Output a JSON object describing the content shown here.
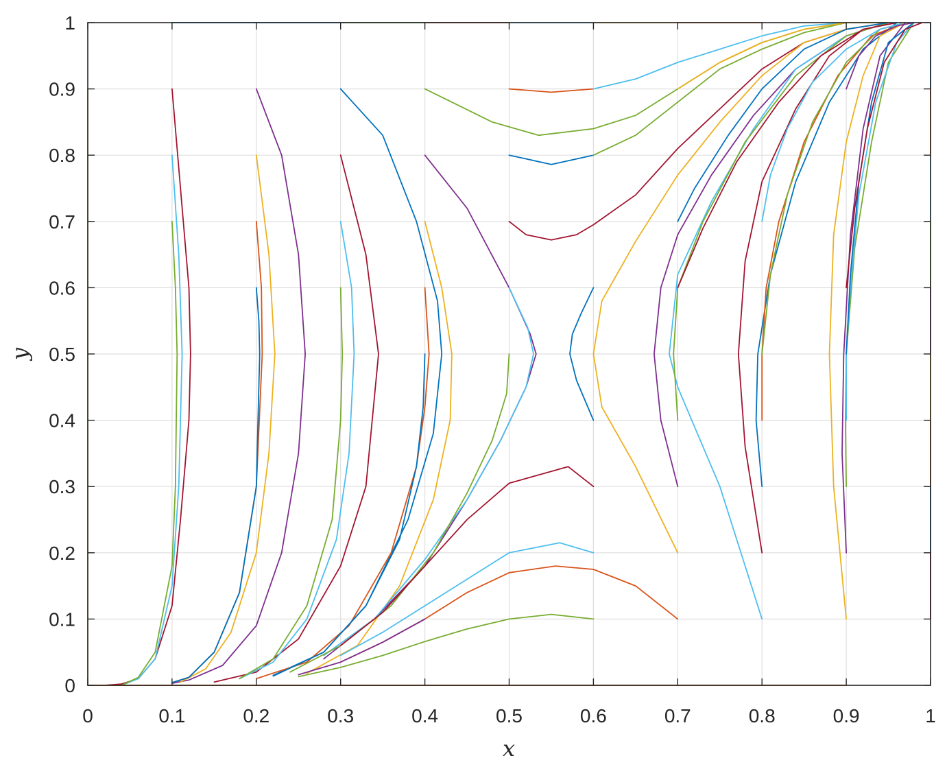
{
  "chart_data": {
    "type": "line",
    "title": "",
    "xlabel": "x",
    "ylabel": "y",
    "xlim": [
      0,
      1
    ],
    "ylim": [
      0,
      1
    ],
    "grid": true,
    "legend": "none",
    "xticks": [
      "0",
      "0.1",
      "0.2",
      "0.3",
      "0.4",
      "0.5",
      "0.6",
      "0.7",
      "0.8",
      "0.9",
      "1"
    ],
    "yticks": [
      "0",
      "0.1",
      "0.2",
      "0.3",
      "0.4",
      "0.5",
      "0.6",
      "0.7",
      "0.8",
      "0.9",
      "1"
    ],
    "colors": [
      "#0072BD",
      "#D95319",
      "#EDB120",
      "#7E2F8E",
      "#77AC30",
      "#4DBEEE",
      "#A2142F"
    ],
    "series": [
      {
        "color": "#A2142F",
        "x": [
          0.1,
          0.11,
          0.12,
          0.122,
          0.12,
          0.11,
          0.1,
          0.08,
          0.06,
          0.04,
          0.02
        ],
        "y": [
          0.9,
          0.75,
          0.6,
          0.5,
          0.4,
          0.25,
          0.12,
          0.04,
          0.01,
          0.002,
          0
        ]
      },
      {
        "color": "#4DBEEE",
        "x": [
          0.1,
          0.108,
          0.112,
          0.108,
          0.1,
          0.08,
          0.06,
          0.04
        ],
        "y": [
          0.8,
          0.65,
          0.5,
          0.3,
          0.15,
          0.04,
          0.01,
          0
        ]
      },
      {
        "color": "#77AC30",
        "x": [
          0.1,
          0.104,
          0.106,
          0.104,
          0.1,
          0.08,
          0.06,
          0.04
        ],
        "y": [
          0.7,
          0.6,
          0.5,
          0.3,
          0.18,
          0.05,
          0.012,
          0
        ]
      },
      {
        "color": "#7E2F8E",
        "x": [
          0.2,
          0.23,
          0.25,
          0.258,
          0.25,
          0.23,
          0.2,
          0.16,
          0.12,
          0.1
        ],
        "y": [
          0.9,
          0.8,
          0.65,
          0.5,
          0.35,
          0.2,
          0.09,
          0.03,
          0.008,
          0.003
        ]
      },
      {
        "color": "#EDB120",
        "x": [
          0.2,
          0.215,
          0.222,
          0.215,
          0.2,
          0.17,
          0.14,
          0.11
        ],
        "y": [
          0.8,
          0.65,
          0.5,
          0.35,
          0.2,
          0.08,
          0.025,
          0.005
        ]
      },
      {
        "color": "#D95319",
        "x": [
          0.2,
          0.206,
          0.207,
          0.2,
          0.18,
          0.15,
          0.12,
          0.1
        ],
        "y": [
          0.7,
          0.6,
          0.5,
          0.3,
          0.14,
          0.05,
          0.012,
          0.004
        ]
      },
      {
        "color": "#0072BD",
        "x": [
          0.2,
          0.203,
          0.204,
          0.2,
          0.18,
          0.15,
          0.12,
          0.1
        ],
        "y": [
          0.6,
          0.55,
          0.5,
          0.3,
          0.14,
          0.05,
          0.012,
          0.004
        ]
      },
      {
        "color": "#A2142F",
        "x": [
          0.3,
          0.33,
          0.345,
          0.33,
          0.3,
          0.25,
          0.2,
          0.15
        ],
        "y": [
          0.8,
          0.65,
          0.5,
          0.3,
          0.18,
          0.07,
          0.02,
          0.005
        ]
      },
      {
        "color": "#4DBEEE",
        "x": [
          0.3,
          0.313,
          0.316,
          0.31,
          0.295,
          0.26,
          0.22,
          0.18
        ],
        "y": [
          0.7,
          0.6,
          0.5,
          0.35,
          0.22,
          0.1,
          0.035,
          0.01
        ]
      },
      {
        "color": "#77AC30",
        "x": [
          0.3,
          0.302,
          0.3,
          0.29,
          0.26,
          0.22,
          0.18
        ],
        "y": [
          0.6,
          0.5,
          0.4,
          0.25,
          0.12,
          0.04,
          0.01
        ]
      },
      {
        "color": "#0072BD",
        "x": [
          0.3,
          0.35,
          0.39,
          0.415,
          0.42,
          0.41,
          0.38,
          0.33,
          0.28,
          0.22
        ],
        "y": [
          0.9,
          0.83,
          0.7,
          0.58,
          0.5,
          0.38,
          0.25,
          0.12,
          0.05,
          0.015
        ]
      },
      {
        "color": "#EDB120",
        "x": [
          0.4,
          0.42,
          0.432,
          0.43,
          0.41,
          0.37,
          0.32,
          0.26
        ],
        "y": [
          0.7,
          0.6,
          0.5,
          0.4,
          0.28,
          0.15,
          0.06,
          0.018
        ]
      },
      {
        "color": "#D95319",
        "x": [
          0.4,
          0.405,
          0.4,
          0.39,
          0.36,
          0.31,
          0.26,
          0.2
        ],
        "y": [
          0.6,
          0.5,
          0.42,
          0.33,
          0.2,
          0.09,
          0.035,
          0.01
        ]
      },
      {
        "color": "#0072BD",
        "x": [
          0.4,
          0.398,
          0.39,
          0.37,
          0.33,
          0.28,
          0.22
        ],
        "y": [
          0.5,
          0.42,
          0.33,
          0.22,
          0.12,
          0.05,
          0.014
        ]
      },
      {
        "color": "#7E2F8E",
        "x": [
          0.4,
          0.45,
          0.5,
          0.525,
          0.532,
          0.52,
          0.49,
          0.45,
          0.4,
          0.34,
          0.28
        ],
        "y": [
          0.8,
          0.72,
          0.6,
          0.53,
          0.5,
          0.45,
          0.37,
          0.28,
          0.18,
          0.1,
          0.04
        ]
      },
      {
        "color": "#4DBEEE",
        "x": [
          0.5,
          0.522,
          0.529,
          0.52,
          0.49,
          0.45,
          0.4,
          0.34,
          0.28
        ],
        "y": [
          0.6,
          0.54,
          0.5,
          0.45,
          0.37,
          0.28,
          0.19,
          0.1,
          0.045
        ]
      },
      {
        "color": "#77AC30",
        "x": [
          0.5,
          0.497,
          0.48,
          0.45,
          0.41,
          0.36,
          0.3,
          0.24
        ],
        "y": [
          0.5,
          0.44,
          0.37,
          0.29,
          0.2,
          0.12,
          0.06,
          0.02
        ]
      },
      {
        "color": "#A2142F",
        "x": [
          0.6,
          0.57,
          0.5,
          0.45,
          0.4,
          0.35,
          0.3
        ],
        "y": [
          0.3,
          0.33,
          0.305,
          0.25,
          0.18,
          0.11,
          0.06
        ]
      },
      {
        "color": "#4DBEEE",
        "x": [
          0.6,
          0.56,
          0.5,
          0.45,
          0.4,
          0.35,
          0.3
        ],
        "y": [
          0.2,
          0.215,
          0.2,
          0.16,
          0.12,
          0.08,
          0.045
        ]
      },
      {
        "color": "#D95319",
        "x": [
          0.7,
          0.65,
          0.6,
          0.555,
          0.5,
          0.45,
          0.4,
          0.35,
          0.3
        ],
        "y": [
          0.1,
          0.15,
          0.175,
          0.18,
          0.17,
          0.14,
          0.1,
          0.065,
          0.035
        ]
      },
      {
        "color": "#77AC30",
        "x": [
          0.6,
          0.55,
          0.5,
          0.45,
          0.4,
          0.35,
          0.3,
          0.25
        ],
        "y": [
          0.1,
          0.107,
          0.1,
          0.085,
          0.066,
          0.045,
          0.027,
          0.013
        ]
      },
      {
        "color": "#7E2F8E",
        "x": [
          0.4,
          0.35,
          0.3,
          0.25
        ],
        "y": [
          0.1,
          0.065,
          0.035,
          0.016
        ]
      },
      {
        "color": "#D95319",
        "x": [
          0.5,
          0.55,
          0.6
        ],
        "y": [
          0.9,
          0.895,
          0.9
        ]
      },
      {
        "color": "#77AC30",
        "x": [
          0.4,
          0.48,
          0.535,
          0.6,
          0.65,
          0.7,
          0.75,
          0.8,
          0.85,
          0.9,
          0.95
        ],
        "y": [
          0.9,
          0.85,
          0.83,
          0.84,
          0.86,
          0.9,
          0.94,
          0.97,
          0.99,
          1,
          1
        ]
      },
      {
        "color": "#0072BD",
        "x": [
          0.5,
          0.55,
          0.6
        ],
        "y": [
          0.8,
          0.786,
          0.8
        ]
      },
      {
        "color": "#4DBEEE",
        "x": [
          0.6,
          0.65,
          0.7,
          0.75,
          0.8,
          0.85,
          0.9,
          0.95
        ],
        "y": [
          0.9,
          0.915,
          0.94,
          0.96,
          0.98,
          0.995,
          1,
          1
        ]
      },
      {
        "color": "#77AC30",
        "x": [
          0.6,
          0.65,
          0.7,
          0.75,
          0.8,
          0.85,
          0.9,
          0.95
        ],
        "y": [
          0.8,
          0.83,
          0.88,
          0.93,
          0.96,
          0.985,
          1,
          1
        ]
      },
      {
        "color": "#A2142F",
        "x": [
          0.5,
          0.52,
          0.55,
          0.58,
          0.6,
          0.65,
          0.7,
          0.75,
          0.8,
          0.85,
          0.9,
          0.95
        ],
        "y": [
          0.7,
          0.68,
          0.672,
          0.68,
          0.695,
          0.74,
          0.81,
          0.87,
          0.93,
          0.97,
          0.99,
          1
        ]
      },
      {
        "color": "#0072BD",
        "x": [
          0.6,
          0.585,
          0.575,
          0.572,
          0.58,
          0.6
        ],
        "y": [
          0.6,
          0.56,
          0.53,
          0.5,
          0.46,
          0.4
        ]
      },
      {
        "color": "#EDB120",
        "x": [
          0.7,
          0.65,
          0.61,
          0.6,
          0.61,
          0.65,
          0.7,
          0.75,
          0.8,
          0.85,
          0.9,
          0.95
        ],
        "y": [
          0.2,
          0.33,
          0.42,
          0.5,
          0.58,
          0.67,
          0.77,
          0.85,
          0.92,
          0.97,
          0.99,
          1
        ]
      },
      {
        "color": "#EDB120",
        "x": [
          0.7,
          0.75,
          0.8,
          0.85,
          0.9,
          0.95
        ],
        "y": [
          0.9,
          0.94,
          0.97,
          0.99,
          1,
          1
        ]
      },
      {
        "color": "#7E2F8E",
        "x": [
          0.7,
          0.68,
          0.672,
          0.68,
          0.7,
          0.74,
          0.79,
          0.84,
          0.9,
          0.95
        ],
        "y": [
          0.3,
          0.4,
          0.5,
          0.6,
          0.68,
          0.77,
          0.86,
          0.93,
          0.98,
          1
        ]
      },
      {
        "color": "#4DBEEE",
        "x": [
          0.8,
          0.75,
          0.7,
          0.69,
          0.7,
          0.74,
          0.79,
          0.84,
          0.9,
          0.95
        ],
        "y": [
          0.1,
          0.3,
          0.45,
          0.5,
          0.62,
          0.73,
          0.84,
          0.93,
          0.98,
          1
        ]
      },
      {
        "color": "#77AC30",
        "x": [
          0.7,
          0.695,
          0.7,
          0.73,
          0.78,
          0.84,
          0.9,
          0.95
        ],
        "y": [
          0.4,
          0.5,
          0.6,
          0.7,
          0.82,
          0.92,
          0.98,
          1
        ]
      },
      {
        "color": "#0072BD",
        "x": [
          0.7,
          0.72,
          0.76,
          0.8,
          0.85,
          0.9,
          0.95
        ],
        "y": [
          0.7,
          0.75,
          0.83,
          0.9,
          0.96,
          0.99,
          1
        ]
      },
      {
        "color": "#A2142F",
        "x": [
          0.7,
          0.73,
          0.77,
          0.82,
          0.87,
          0.92,
          0.96
        ],
        "y": [
          0.6,
          0.69,
          0.79,
          0.88,
          0.95,
          0.99,
          1
        ]
      },
      {
        "color": "#A2142F",
        "x": [
          0.8,
          0.78,
          0.772,
          0.78,
          0.8,
          0.84,
          0.88,
          0.92,
          0.96
        ],
        "y": [
          0.2,
          0.36,
          0.5,
          0.64,
          0.76,
          0.87,
          0.95,
          0.99,
          1
        ]
      },
      {
        "color": "#0072BD",
        "x": [
          0.8,
          0.793,
          0.795,
          0.81,
          0.84,
          0.88,
          0.92,
          0.96
        ],
        "y": [
          0.3,
          0.4,
          0.5,
          0.62,
          0.76,
          0.88,
          0.96,
          1
        ]
      },
      {
        "color": "#D95319",
        "x": [
          0.8,
          0.8,
          0.805,
          0.82,
          0.85,
          0.89,
          0.93,
          0.97
        ],
        "y": [
          0.4,
          0.5,
          0.6,
          0.7,
          0.82,
          0.92,
          0.98,
          1
        ]
      },
      {
        "color": "#77AC30",
        "x": [
          0.8,
          0.81,
          0.83,
          0.86,
          0.9,
          0.94,
          0.97
        ],
        "y": [
          0.5,
          0.62,
          0.74,
          0.85,
          0.94,
          0.99,
          1
        ]
      },
      {
        "color": "#4DBEEE",
        "x": [
          0.8,
          0.81,
          0.83,
          0.86,
          0.9,
          0.94,
          0.97
        ],
        "y": [
          0.7,
          0.77,
          0.84,
          0.91,
          0.96,
          0.99,
          1
        ]
      },
      {
        "color": "#EDB120",
        "x": [
          0.9,
          0.885,
          0.88,
          0.885,
          0.9,
          0.92,
          0.94,
          0.97
        ],
        "y": [
          0.1,
          0.3,
          0.5,
          0.68,
          0.82,
          0.92,
          0.98,
          1
        ]
      },
      {
        "color": "#7E2F8E",
        "x": [
          0.9,
          0.895,
          0.897,
          0.905,
          0.92,
          0.94,
          0.97
        ],
        "y": [
          0.2,
          0.35,
          0.5,
          0.68,
          0.84,
          0.95,
          1
        ]
      },
      {
        "color": "#77AC30",
        "x": [
          0.9,
          0.899,
          0.9,
          0.91,
          0.93,
          0.95,
          0.98
        ],
        "y": [
          0.3,
          0.4,
          0.5,
          0.66,
          0.82,
          0.94,
          1
        ]
      },
      {
        "color": "#4DBEEE",
        "x": [
          0.9,
          0.9,
          0.905,
          0.915,
          0.935,
          0.96,
          0.98
        ],
        "y": [
          0.4,
          0.5,
          0.6,
          0.74,
          0.88,
          0.97,
          1
        ]
      },
      {
        "color": "#0072BD",
        "x": [
          0.9,
          0.905,
          0.915,
          0.93,
          0.95,
          0.98
        ],
        "y": [
          0.5,
          0.62,
          0.76,
          0.88,
          0.97,
          1
        ]
      },
      {
        "color": "#A2142F",
        "x": [
          0.9,
          0.91,
          0.925,
          0.945,
          0.97,
          0.99
        ],
        "y": [
          0.6,
          0.72,
          0.84,
          0.94,
          0.99,
          1
        ]
      },
      {
        "color": "#7E2F8E",
        "x": [
          0.9,
          0.915,
          0.935,
          0.96,
          0.98
        ],
        "y": [
          0.9,
          0.95,
          0.98,
          0.995,
          1
        ]
      },
      {
        "color": "#EDB120",
        "x": [
          0,
          0.5
        ],
        "y": [
          0,
          0
        ]
      },
      {
        "color": "#D95319",
        "x": [
          0,
          0.9
        ],
        "y": [
          0,
          0
        ]
      },
      {
        "color": "#0072BD",
        "x": [
          0.1,
          0.5
        ],
        "y": [
          1,
          1
        ]
      },
      {
        "color": "#77AC30",
        "x": [
          0.3,
          0.4
        ],
        "y": [
          1,
          1
        ]
      },
      {
        "color": "#D95319",
        "x": [
          0.4,
          0.5
        ],
        "y": [
          1,
          1
        ]
      },
      {
        "color": "#4DBEEE",
        "x": [
          0.5,
          0.6
        ],
        "y": [
          1,
          1
        ]
      },
      {
        "color": "#EDB120",
        "x": [
          0.6,
          0.7
        ],
        "y": [
          1,
          1
        ]
      },
      {
        "color": "#D95319",
        "x": [
          0.7,
          0.8
        ],
        "y": [
          1,
          1
        ]
      },
      {
        "color": "#EDB120",
        "x": [
          0,
          0
        ],
        "y": [
          0,
          0.9
        ]
      },
      {
        "color": "#0072BD",
        "x": [
          1,
          1
        ],
        "y": [
          0.9,
          1
        ]
      },
      {
        "color": "#D95319",
        "x": [
          1,
          1
        ],
        "y": [
          0.8,
          0.9
        ]
      },
      {
        "color": "#4DBEEE",
        "x": [
          1,
          1
        ],
        "y": [
          0.7,
          0.8
        ]
      },
      {
        "color": "#77AC30",
        "x": [
          1,
          1
        ],
        "y": [
          0.6,
          0.7
        ]
      },
      {
        "color": "#7E2F8E",
        "x": [
          1,
          1
        ],
        "y": [
          0.5,
          0.6
        ]
      },
      {
        "color": "#EDB120",
        "x": [
          1,
          1
        ],
        "y": [
          0.4,
          0.5
        ]
      },
      {
        "color": "#D95319",
        "x": [
          1,
          1
        ],
        "y": [
          0.3,
          0.4
        ]
      },
      {
        "color": "#0072BD",
        "x": [
          1,
          1
        ],
        "y": [
          0.2,
          0.3
        ]
      },
      {
        "color": "#A2142F",
        "x": [
          1,
          1
        ],
        "y": [
          0.1,
          0.2
        ]
      }
    ]
  }
}
